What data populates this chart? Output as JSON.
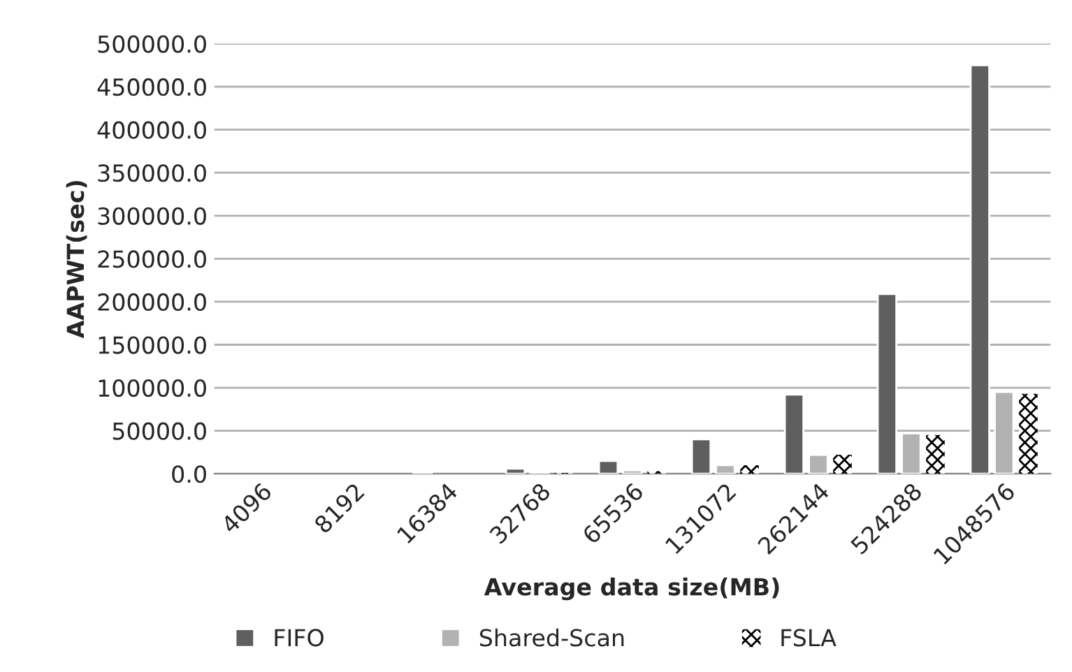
{
  "chart_data": {
    "type": "bar",
    "xlabel": "Average data size(MB)",
    "ylabel": "AAPWT(sec)",
    "categories": [
      "4096",
      "8192",
      "16384",
      "32768",
      "65536",
      "131072",
      "262144",
      "524288",
      "1048576"
    ],
    "series": [
      {
        "name": "FIFO",
        "color": "#5f5f5f",
        "values": [
          null,
          null,
          2000,
          6000,
          15000,
          40000,
          92000,
          209000,
          475000
        ]
      },
      {
        "name": "Shared-Scan",
        "color": "#b2b2b2",
        "values": [
          null,
          null,
          null,
          2000,
          4000,
          10000,
          22000,
          47000,
          95000
        ]
      },
      {
        "name": "FSLA",
        "color": "#000000",
        "values": [
          null,
          null,
          null,
          1000,
          3000,
          10000,
          22000,
          45000,
          93000
        ]
      }
    ],
    "ylim": [
      0,
      500000
    ],
    "yticks": [
      {
        "value": 0,
        "label": "0.0"
      },
      {
        "value": 50000,
        "label": "50000.0"
      },
      {
        "value": 100000,
        "label": "100000.0"
      },
      {
        "value": 150000,
        "label": "150000.0"
      },
      {
        "value": 200000,
        "label": "200000.0"
      },
      {
        "value": 250000,
        "label": "250000.0"
      },
      {
        "value": 300000,
        "label": "300000.0"
      },
      {
        "value": 350000,
        "label": "350000.0"
      },
      {
        "value": 400000,
        "label": "400000.0"
      },
      {
        "value": 450000,
        "label": "450000.0"
      },
      {
        "value": 500000,
        "label": "500000.0"
      }
    ],
    "grid": "y",
    "legend": "bottom"
  }
}
